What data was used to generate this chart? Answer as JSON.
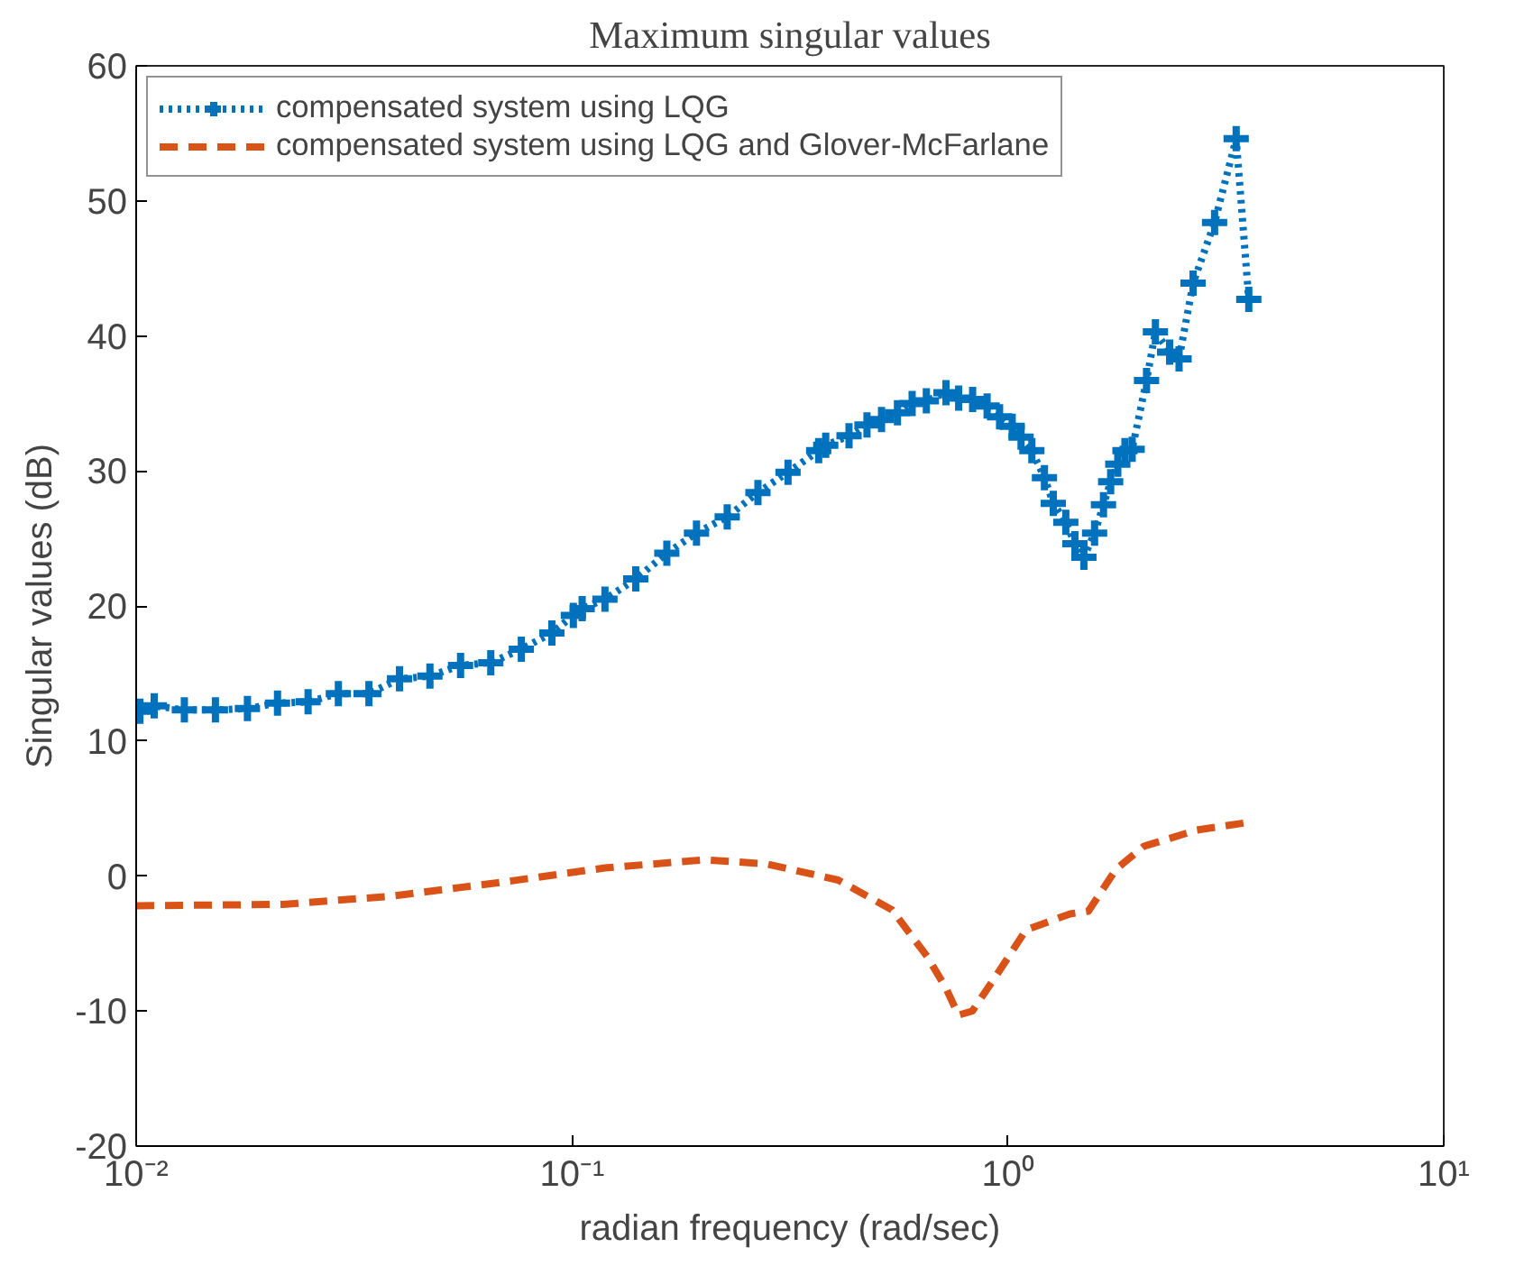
{
  "chart_data": {
    "type": "line",
    "title": "Maximum singular values",
    "xlabel": "radian frequency (rad/sec)",
    "ylabel": "Singular values (dB)",
    "log": "x",
    "grid": false,
    "legend": "top left",
    "xlim": [
      0.01,
      10
    ],
    "xticks": [
      {
        "value": 0.01,
        "label": "10⁻²"
      },
      {
        "value": 0.1,
        "label": "10⁻¹"
      },
      {
        "value": 1,
        "label": "10⁰"
      },
      {
        "value": 10,
        "label": "10¹"
      }
    ],
    "ylim": [
      -20,
      60
    ],
    "yticks": [
      -20,
      -10,
      0,
      10,
      20,
      30,
      40,
      50,
      60
    ],
    "series": [
      {
        "name": "compensated system using LQG",
        "color": "#0072bd",
        "marker": "cross",
        "line_style": "dotted",
        "x": [
          0.0102,
          0.011,
          0.0129,
          0.0152,
          0.018,
          0.0211,
          0.0248,
          0.0291,
          0.0342,
          0.0402,
          0.0472,
          0.0555,
          0.0651,
          0.0765,
          0.0899,
          0.1007,
          0.1055,
          0.119,
          0.14,
          0.165,
          0.193,
          0.227,
          0.267,
          0.313,
          0.368,
          0.382,
          0.432,
          0.475,
          0.513,
          0.558,
          0.603,
          0.65,
          0.721,
          0.771,
          0.83,
          0.896,
          0.957,
          1.023,
          1.072,
          1.135,
          1.213,
          1.271,
          1.358,
          1.425,
          1.494,
          1.581,
          1.657,
          1.721,
          1.787,
          1.856,
          1.928,
          2.08,
          2.18,
          2.35,
          2.47,
          2.66,
          2.98,
          3.34,
          3.57
        ],
        "values": [
          12.2,
          12.6,
          12.3,
          12.3,
          12.4,
          12.8,
          12.9,
          13.5,
          13.5,
          14.6,
          14.8,
          15.6,
          15.8,
          16.8,
          18.0,
          19.3,
          19.8,
          20.5,
          22.0,
          23.9,
          25.4,
          26.6,
          28.4,
          29.9,
          31.5,
          31.9,
          32.6,
          33.4,
          33.8,
          34.3,
          35.0,
          35.2,
          35.8,
          35.4,
          35.3,
          34.8,
          34.0,
          33.3,
          32.5,
          31.5,
          29.5,
          27.6,
          26.2,
          24.6,
          23.6,
          25.4,
          27.5,
          29.2,
          30.5,
          31.5,
          31.6,
          36.7,
          40.3,
          38.8,
          38.3,
          43.9,
          48.4,
          54.6,
          42.7
        ]
      },
      {
        "name": "compensated system using LQG and Glover-McFarlane",
        "color": "#d95319",
        "marker": "none",
        "line_style": "dashed",
        "x": [
          0.01,
          0.0217,
          0.0383,
          0.0676,
          0.119,
          0.201,
          0.279,
          0.408,
          0.542,
          0.654,
          0.721,
          0.77,
          0.829,
          0.957,
          1.1,
          1.39,
          1.53,
          1.77,
          2.05,
          2.71,
          3.61
        ],
        "values": [
          -2.2,
          -2.1,
          -1.5,
          -0.5,
          0.6,
          1.2,
          0.9,
          -0.3,
          -2.5,
          -6.0,
          -8.3,
          -10.3,
          -10.0,
          -7.0,
          -4.0,
          -2.8,
          -2.6,
          0.5,
          2.2,
          3.4,
          4.0
        ]
      }
    ]
  }
}
